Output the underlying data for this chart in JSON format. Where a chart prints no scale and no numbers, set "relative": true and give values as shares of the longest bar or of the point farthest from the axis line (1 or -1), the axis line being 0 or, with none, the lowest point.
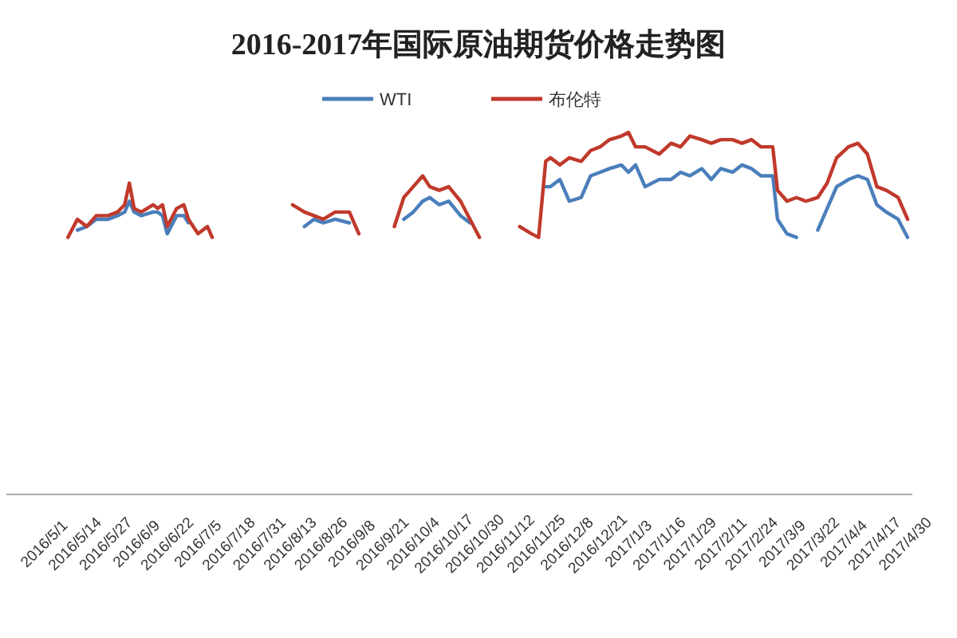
{
  "chart_data": {
    "type": "line",
    "title": "2016-2017年国际原油期货价格走势图",
    "relative": true,
    "legend": "top",
    "x": [
      "2016-05-11",
      "2016-05-15",
      "2016-05-19",
      "2016-05-23",
      "2016-05-28",
      "2016-06-01",
      "2016-06-04",
      "2016-06-06",
      "2016-06-08",
      "2016-06-11",
      "2016-06-16",
      "2016-06-18",
      "2016-06-20",
      "2016-06-22",
      "2016-06-26",
      "2016-06-29",
      "2016-07-01",
      "2016-07-05",
      "2016-07-09",
      "2016-07-11",
      "2016-07-25",
      "2016-08-14",
      "2016-08-19",
      "2016-08-23",
      "2016-08-27",
      "2016-09-01",
      "2016-09-07",
      "2016-09-11",
      "2016-09-18",
      "2016-09-26",
      "2016-09-30",
      "2016-10-04",
      "2016-10-08",
      "2016-10-11",
      "2016-10-15",
      "2016-10-19",
      "2016-10-24",
      "2016-10-28",
      "2016-11-01",
      "2016-11-10",
      "2016-11-18",
      "2016-11-23",
      "2016-11-26",
      "2016-11-29",
      "2016-12-01",
      "2016-12-05",
      "2016-12-09",
      "2016-12-14",
      "2016-12-18",
      "2016-12-22",
      "2016-12-26",
      "2016-12-31",
      "2017-01-03",
      "2017-01-06",
      "2017-01-10",
      "2017-01-16",
      "2017-01-21",
      "2017-01-25",
      "2017-01-29",
      "2017-02-03",
      "2017-02-07",
      "2017-02-11",
      "2017-02-16",
      "2017-02-20",
      "2017-02-24",
      "2017-02-28",
      "2017-03-05",
      "2017-03-07",
      "2017-03-11",
      "2017-03-15",
      "2017-03-19",
      "2017-03-24",
      "2017-03-28",
      "2017-04-01",
      "2017-04-06",
      "2017-04-10",
      "2017-04-14",
      "2017-04-18",
      "2017-04-22",
      "2017-04-27",
      "2017-05-01"
    ],
    "series": [
      {
        "name": "WTI",
        "color": "#4a7ebb",
        "values": [
          null,
          0.73,
          0.74,
          0.76,
          0.76,
          0.77,
          0.78,
          0.81,
          0.78,
          0.77,
          0.78,
          0.78,
          0.77,
          0.72,
          0.77,
          0.77,
          0.75,
          null,
          null,
          null,
          null,
          null,
          0.74,
          0.76,
          0.75,
          0.76,
          0.75,
          null,
          null,
          null,
          0.76,
          0.78,
          0.81,
          0.82,
          0.8,
          0.81,
          0.77,
          0.75,
          null,
          null,
          null,
          null,
          null,
          0.85,
          0.85,
          0.87,
          0.81,
          0.82,
          0.88,
          0.89,
          0.9,
          0.91,
          0.89,
          0.91,
          0.85,
          0.87,
          0.87,
          0.89,
          0.88,
          0.9,
          0.87,
          0.9,
          0.89,
          0.91,
          0.9,
          0.88,
          0.88,
          0.76,
          0.72,
          0.71,
          null,
          0.73,
          0.79,
          0.85,
          0.87,
          0.88,
          0.87,
          0.8,
          0.78,
          0.76,
          0.71
        ]
      },
      {
        "name": "布伦特",
        "color": "#c0392b",
        "values": [
          0.71,
          0.76,
          0.74,
          0.77,
          0.77,
          0.78,
          0.8,
          0.86,
          0.79,
          0.78,
          0.8,
          0.79,
          0.8,
          0.74,
          0.79,
          0.8,
          0.76,
          0.72,
          0.74,
          0.71,
          null,
          0.8,
          0.78,
          0.77,
          0.76,
          0.78,
          0.78,
          0.72,
          null,
          0.74,
          0.82,
          0.85,
          0.88,
          0.85,
          0.84,
          0.85,
          0.81,
          0.76,
          0.71,
          null,
          0.74,
          0.72,
          0.71,
          0.92,
          0.93,
          0.91,
          0.93,
          0.92,
          0.95,
          0.96,
          0.98,
          0.99,
          1,
          0.96,
          0.96,
          0.94,
          0.97,
          0.96,
          0.99,
          0.98,
          0.97,
          0.98,
          0.98,
          0.97,
          0.98,
          0.96,
          0.96,
          0.84,
          0.81,
          0.82,
          0.81,
          0.82,
          0.86,
          0.93,
          0.96,
          0.97,
          0.94,
          0.85,
          0.84,
          0.82,
          0.76
        ]
      }
    ],
    "xlim": [
      "2016-04-15",
      "2017-05-03"
    ],
    "xticks": [
      {
        "value": "2016-05-01",
        "label": "2016/5/1"
      },
      {
        "value": "2016-05-14",
        "label": "2016/5/14"
      },
      {
        "value": "2016-05-27",
        "label": "2016/5/27"
      },
      {
        "value": "2016-06-09",
        "label": "2016/6/9"
      },
      {
        "value": "2016-06-22",
        "label": "2016/6/22"
      },
      {
        "value": "2016-07-05",
        "label": "2016/7/5"
      },
      {
        "value": "2016-07-18",
        "label": "2016/7/18"
      },
      {
        "value": "2016-07-31",
        "label": "2016/7/31"
      },
      {
        "value": "2016-08-13",
        "label": "2016/8/13"
      },
      {
        "value": "2016-08-26",
        "label": "2016/8/26"
      },
      {
        "value": "2016-09-08",
        "label": "2016/9/8"
      },
      {
        "value": "2016-09-21",
        "label": "2016/9/21"
      },
      {
        "value": "2016-10-04",
        "label": "2016/10/4"
      },
      {
        "value": "2016-10-17",
        "label": "2016/10/17"
      },
      {
        "value": "2016-10-30",
        "label": "2016/10/30"
      },
      {
        "value": "2016-11-12",
        "label": "2016/11/12"
      },
      {
        "value": "2016-11-25",
        "label": "2016/11/25"
      },
      {
        "value": "2016-12-08",
        "label": "2016/12/8"
      },
      {
        "value": "2016-12-21",
        "label": "2016/12/21"
      },
      {
        "value": "2017-01-03",
        "label": "2017/1/3"
      },
      {
        "value": "2017-01-16",
        "label": "2017/1/16"
      },
      {
        "value": "2017-01-29",
        "label": "2017/1/29"
      },
      {
        "value": "2017-02-11",
        "label": "2017/2/11"
      },
      {
        "value": "2017-02-24",
        "label": "2017/2/24"
      },
      {
        "value": "2017-03-09",
        "label": "2017/3/9"
      },
      {
        "value": "2017-03-22",
        "label": "2017/3/22"
      },
      {
        "value": "2017-04-04",
        "label": "2017/4/4"
      },
      {
        "value": "2017-04-17",
        "label": "2017/4/17"
      },
      {
        "value": "2017-04-30",
        "label": "2017/4/30"
      }
    ]
  }
}
